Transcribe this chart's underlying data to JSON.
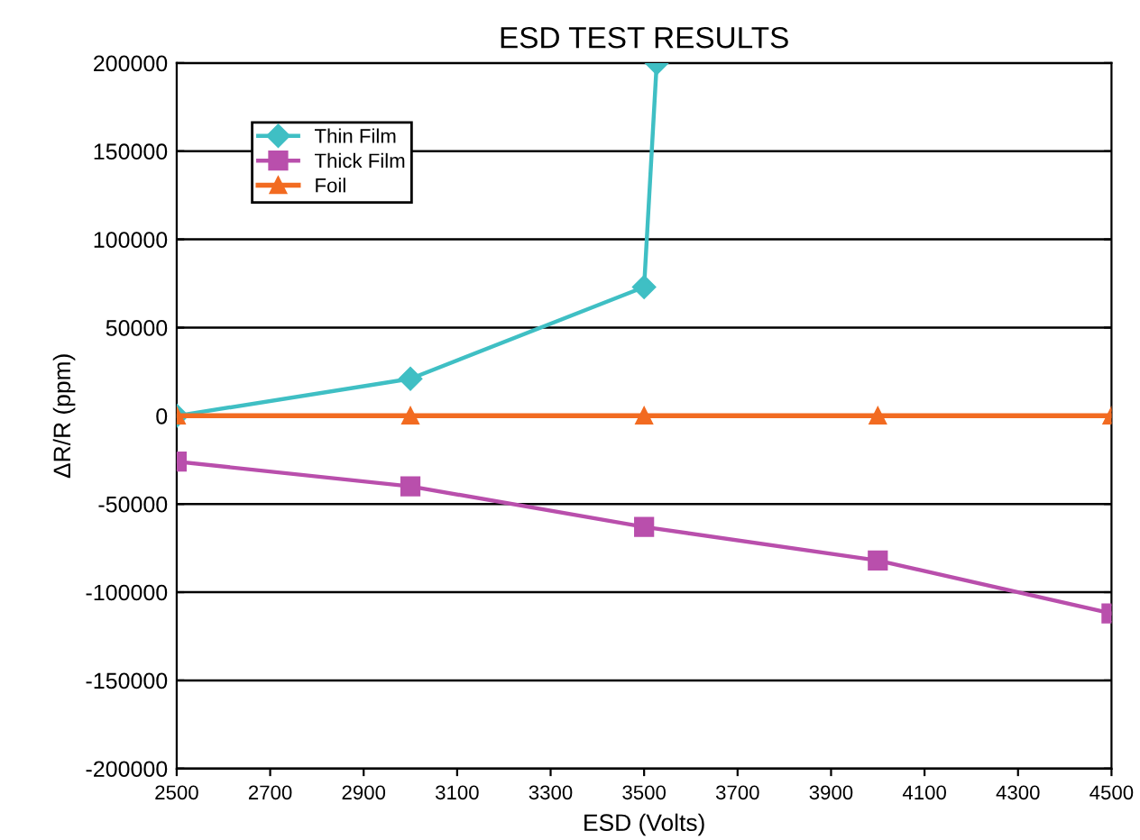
{
  "chart_data": {
    "type": "line",
    "title": "ESD TEST RESULTS",
    "xlabel": "ESD (Volts)",
    "ylabel": "ΔR/R (ppm)",
    "xlim": [
      2500,
      4500
    ],
    "xticks": [
      2500,
      2700,
      2900,
      3100,
      3300,
      3500,
      3700,
      3900,
      4100,
      4300,
      4500
    ],
    "ylim": [
      -200000,
      200000
    ],
    "yticks": [
      -200000,
      -150000,
      -100000,
      -50000,
      0,
      50000,
      100000,
      150000,
      200000
    ],
    "grid": "y",
    "legend": "top left",
    "line_style": "solid",
    "series": [
      {
        "name": "Thin Film",
        "color": "#3fbfc4",
        "marker": "diamond",
        "x": [
          2500,
          3000,
          3500,
          3527
        ],
        "values": [
          0,
          21000,
          73000,
          200000
        ]
      },
      {
        "name": "Thick Film",
        "color": "#b94fac",
        "marker": "square",
        "x": [
          2500,
          3000,
          3500,
          4000,
          4500
        ],
        "values": [
          -26000,
          -40000,
          -63000,
          -82000,
          -112000
        ]
      },
      {
        "name": "Foil",
        "color": "#f26b21",
        "marker": "triangle",
        "x": [
          2500,
          3000,
          3500,
          4000,
          4500
        ],
        "values": [
          0,
          0,
          0,
          0,
          0
        ]
      }
    ]
  }
}
